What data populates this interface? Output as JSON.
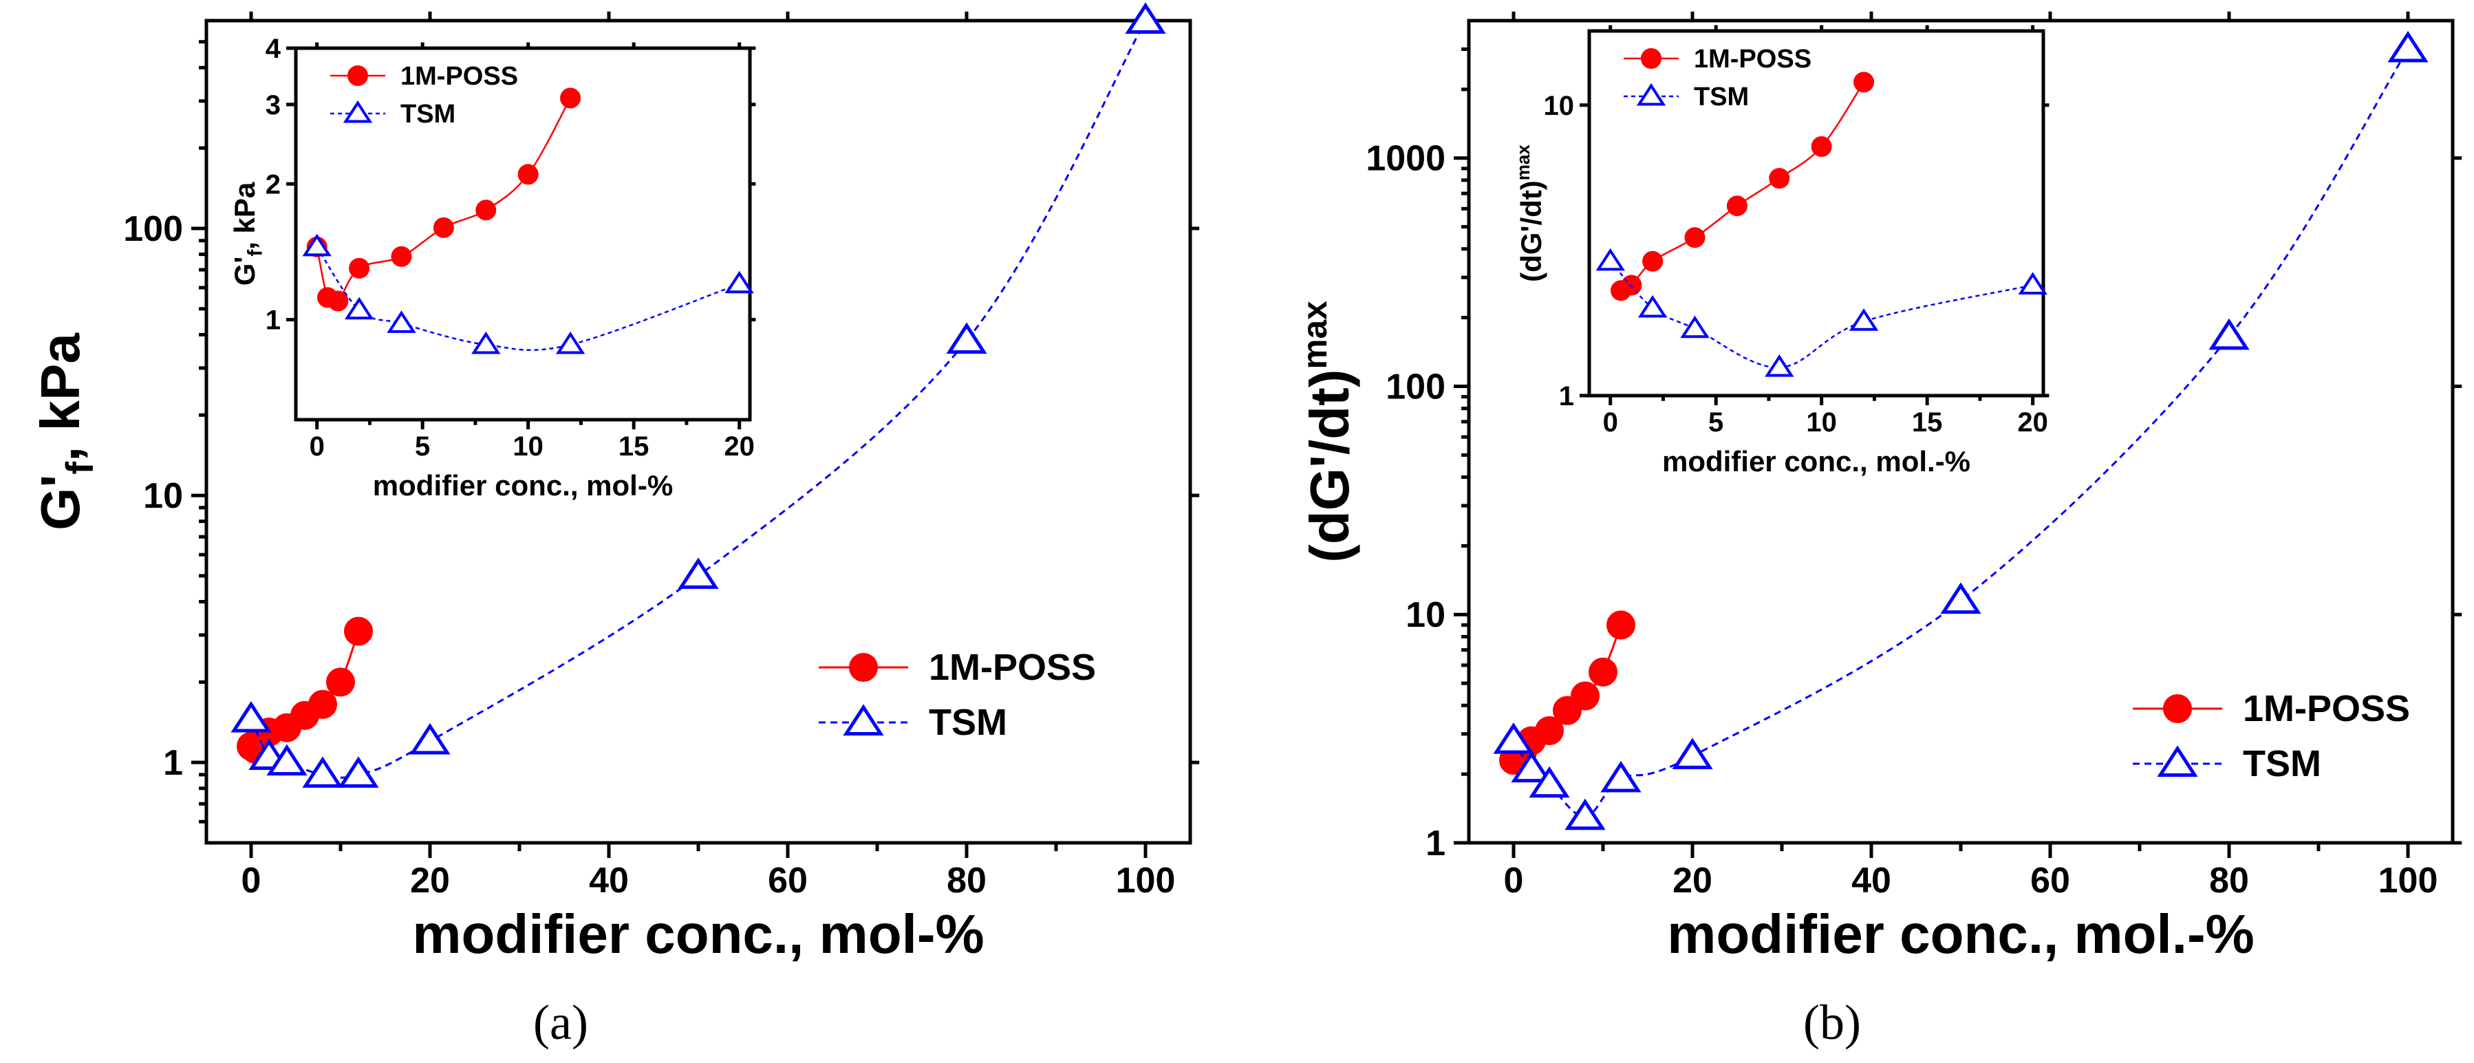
{
  "colors": {
    "poss": "#ff0000",
    "tsm": "#0000ff"
  },
  "chart_data": [
    {
      "type": "scatter",
      "panel": "a",
      "caption": "(a)",
      "xlabel": "modifier conc., mol-%",
      "ylabel": "G'f, kPa",
      "yscale": "log",
      "xlim": [
        -5,
        105
      ],
      "ylim": [
        0.5,
        600
      ],
      "xticks": [
        "0",
        "20",
        "40",
        "60",
        "80",
        "100"
      ],
      "yticks": [
        "1",
        "10",
        "100"
      ],
      "legend": [
        "1M-POSS",
        "TSM"
      ],
      "legend_position": "center-right",
      "series": [
        {
          "name": "1M-POSS",
          "marker": "circle",
          "x": [
            0,
            0.5,
            1,
            2,
            4,
            6,
            8,
            10,
            12
          ],
          "y": [
            1.15,
            1.12,
            1.2,
            1.3,
            1.35,
            1.5,
            1.65,
            2.0,
            3.1
          ]
        },
        {
          "name": "TSM",
          "marker": "triangle",
          "x": [
            0,
            2,
            4,
            8,
            12,
            20,
            50,
            80,
            100
          ],
          "y": [
            1.45,
            1.05,
            1.0,
            0.9,
            0.9,
            1.2,
            5.0,
            38,
            600
          ]
        }
      ],
      "inset": {
        "xlabel": "modifier conc., mol-%",
        "ylabel": "G'f, kPa",
        "yscale": "log",
        "xlim": [
          -1,
          20.5
        ],
        "ylim": [
          0.6,
          4
        ],
        "xticks": [
          "0",
          "5",
          "10",
          "15",
          "20"
        ],
        "yticks": [
          "1",
          "2",
          "3",
          "4"
        ],
        "legend": [
          "1M-POSS",
          "TSM"
        ],
        "legend_position": "top-left",
        "series": [
          {
            "name": "1M-POSS",
            "marker": "circle",
            "x": [
              0,
              0.5,
              1,
              2,
              4,
              6,
              8,
              10,
              12
            ],
            "y": [
              1.45,
              1.12,
              1.1,
              1.3,
              1.38,
              1.6,
              1.75,
              2.1,
              3.1
            ]
          },
          {
            "name": "TSM",
            "marker": "triangle",
            "x": [
              0,
              2,
              4,
              8,
              12,
              20
            ],
            "y": [
              1.45,
              1.05,
              0.98,
              0.88,
              0.88,
              1.2
            ]
          }
        ]
      }
    },
    {
      "type": "scatter",
      "panel": "b",
      "caption": "(b)",
      "xlabel": "modifier conc., mol.-%",
      "ylabel": "(dG'/dt)max",
      "yscale": "log",
      "xlim": [
        -5,
        105
      ],
      "ylim": [
        1,
        4000
      ],
      "xticks": [
        "0",
        "20",
        "40",
        "60",
        "80",
        "100"
      ],
      "yticks": [
        "1",
        "10",
        "100",
        "1000"
      ],
      "legend": [
        "1M-POSS",
        "TSM"
      ],
      "legend_position": "bottom-right",
      "series": [
        {
          "name": "1M-POSS",
          "marker": "circle",
          "x": [
            0,
            1,
            2,
            4,
            6,
            8,
            10,
            12
          ],
          "y": [
            2.3,
            2.5,
            2.8,
            3.1,
            3.8,
            4.4,
            5.6,
            9.0
          ]
        },
        {
          "name": "TSM",
          "marker": "triangle",
          "x": [
            0,
            2,
            4,
            8,
            12,
            20,
            50,
            80,
            100
          ],
          "y": [
            2.8,
            2.1,
            1.8,
            1.3,
            1.9,
            2.4,
            11.5,
            165,
            3000
          ]
        }
      ],
      "inset": {
        "xlabel": "modifier conc., mol.-%",
        "ylabel": "(dG'/dt)max",
        "yscale": "log",
        "xlim": [
          -1,
          20.5
        ],
        "ylim": [
          1,
          18
        ],
        "xticks": [
          "0",
          "5",
          "10",
          "15",
          "20"
        ],
        "yticks": [
          "1",
          "10"
        ],
        "legend": [
          "1M-POSS",
          "TSM"
        ],
        "legend_position": "top-left",
        "series": [
          {
            "name": "1M-POSS",
            "marker": "circle",
            "x": [
              0.5,
              1,
              2,
              4,
              6,
              8,
              10,
              12
            ],
            "y": [
              2.3,
              2.4,
              2.9,
              3.5,
              4.5,
              5.6,
              7.2,
              12.0
            ]
          },
          {
            "name": "TSM",
            "marker": "triangle",
            "x": [
              0,
              2,
              4,
              8,
              12,
              20
            ],
            "y": [
              2.9,
              2.0,
              1.7,
              1.25,
              1.8,
              2.4
            ]
          }
        ]
      }
    }
  ]
}
